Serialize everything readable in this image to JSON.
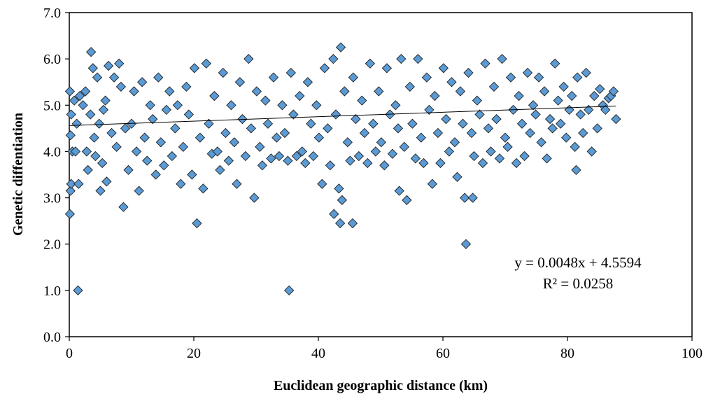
{
  "chart_data": {
    "type": "scatter",
    "title": "",
    "xlabel": "Euclidean geographic distance (km)",
    "ylabel": "Genetic diffentiation",
    "xlim": [
      0,
      100
    ],
    "ylim": [
      0,
      7
    ],
    "x_ticks": [
      "0",
      "20",
      "40",
      "60",
      "80",
      "100"
    ],
    "y_ticks": [
      "0.0",
      "1.0",
      "2.0",
      "3.0",
      "4.0",
      "5.0",
      "6.0",
      "7.0"
    ],
    "grid": false,
    "legend": "none",
    "marker": "diamond",
    "marker_color": "#5B9BD5",
    "marker_edge_color": "#1F1F1F",
    "trendline": {
      "type": "linear",
      "slope": 0.0048,
      "intercept": 4.5594,
      "r_squared": 0.0258,
      "x_range": [
        0,
        87.8
      ],
      "equation_label": "y = 0.0048x + 4.5594",
      "r2_label": "R² = 0.0258"
    },
    "series": [
      {
        "points": [
          [
            0.1,
            2.65
          ],
          [
            0.2,
            3.15
          ],
          [
            0.3,
            3.3
          ],
          [
            0.5,
            4.0
          ],
          [
            0.2,
            4.35
          ],
          [
            0.3,
            4.8
          ],
          [
            0.1,
            5.3
          ],
          [
            0.8,
            5.1
          ],
          [
            1.0,
            4.0
          ],
          [
            1.2,
            4.6
          ],
          [
            1.4,
            1.0
          ],
          [
            1.5,
            3.3
          ],
          [
            1.7,
            5.2
          ],
          [
            2.2,
            5.0
          ],
          [
            2.6,
            5.3
          ],
          [
            2.8,
            4.0
          ],
          [
            3.0,
            3.6
          ],
          [
            3.4,
            4.8
          ],
          [
            3.5,
            6.15
          ],
          [
            3.8,
            5.8
          ],
          [
            4.0,
            4.3
          ],
          [
            4.2,
            3.9
          ],
          [
            4.5,
            5.6
          ],
          [
            4.8,
            4.6
          ],
          [
            5.0,
            3.15
          ],
          [
            5.3,
            3.75
          ],
          [
            5.5,
            4.9
          ],
          [
            5.8,
            5.1
          ],
          [
            6.0,
            3.35
          ],
          [
            6.3,
            5.85
          ],
          [
            6.8,
            4.4
          ],
          [
            7.2,
            5.6
          ],
          [
            7.6,
            4.1
          ],
          [
            8.0,
            5.9
          ],
          [
            8.3,
            5.4
          ],
          [
            8.7,
            2.8
          ],
          [
            9.0,
            4.5
          ],
          [
            9.5,
            3.6
          ],
          [
            10.0,
            4.6
          ],
          [
            10.4,
            5.3
          ],
          [
            10.8,
            4.0
          ],
          [
            11.2,
            3.15
          ],
          [
            11.7,
            5.5
          ],
          [
            12.1,
            4.3
          ],
          [
            12.5,
            3.8
          ],
          [
            13.0,
            5.0
          ],
          [
            13.4,
            4.7
          ],
          [
            13.9,
            3.5
          ],
          [
            14.3,
            5.6
          ],
          [
            14.7,
            4.2
          ],
          [
            15.2,
            3.7
          ],
          [
            15.6,
            4.9
          ],
          [
            16.1,
            5.3
          ],
          [
            16.5,
            3.9
          ],
          [
            17.0,
            4.5
          ],
          [
            17.4,
            5.0
          ],
          [
            17.9,
            3.3
          ],
          [
            18.3,
            4.1
          ],
          [
            18.8,
            5.4
          ],
          [
            19.2,
            4.8
          ],
          [
            19.7,
            3.5
          ],
          [
            20.1,
            5.8
          ],
          [
            20.5,
            2.45
          ],
          [
            21.0,
            4.3
          ],
          [
            21.5,
            3.2
          ],
          [
            22.0,
            5.9
          ],
          [
            22.4,
            4.6
          ],
          [
            22.9,
            3.95
          ],
          [
            23.3,
            5.2
          ],
          [
            23.8,
            4.0
          ],
          [
            24.2,
            3.6
          ],
          [
            24.7,
            5.7
          ],
          [
            25.1,
            4.4
          ],
          [
            25.6,
            3.8
          ],
          [
            26.0,
            5.0
          ],
          [
            26.5,
            4.2
          ],
          [
            26.9,
            3.3
          ],
          [
            27.4,
            5.5
          ],
          [
            27.8,
            4.7
          ],
          [
            28.3,
            3.9
          ],
          [
            28.8,
            6.0
          ],
          [
            29.2,
            4.5
          ],
          [
            29.7,
            3.0
          ],
          [
            30.1,
            5.3
          ],
          [
            30.6,
            4.1
          ],
          [
            31.0,
            3.7
          ],
          [
            31.5,
            5.1
          ],
          [
            31.9,
            4.6
          ],
          [
            32.4,
            3.85
          ],
          [
            32.8,
            5.6
          ],
          [
            33.3,
            4.3
          ],
          [
            33.7,
            3.9
          ],
          [
            34.2,
            5.0
          ],
          [
            34.6,
            4.4
          ],
          [
            35.1,
            3.8
          ],
          [
            35.3,
            1.0
          ],
          [
            35.6,
            5.7
          ],
          [
            36.0,
            4.8
          ],
          [
            36.5,
            3.9
          ],
          [
            37.0,
            5.2
          ],
          [
            37.4,
            4.0
          ],
          [
            37.9,
            3.75
          ],
          [
            38.3,
            5.5
          ],
          [
            38.8,
            4.6
          ],
          [
            39.2,
            3.9
          ],
          [
            39.7,
            5.0
          ],
          [
            40.1,
            4.3
          ],
          [
            40.6,
            3.3
          ],
          [
            41.0,
            5.8
          ],
          [
            41.5,
            4.5
          ],
          [
            41.9,
            3.7
          ],
          [
            42.4,
            6.0
          ],
          [
            42.5,
            2.65
          ],
          [
            42.8,
            4.8
          ],
          [
            43.3,
            3.2
          ],
          [
            43.5,
            2.45
          ],
          [
            43.6,
            6.25
          ],
          [
            43.8,
            2.95
          ],
          [
            44.2,
            5.3
          ],
          [
            44.7,
            4.2
          ],
          [
            45.1,
            3.8
          ],
          [
            45.5,
            2.45
          ],
          [
            45.6,
            5.6
          ],
          [
            46.0,
            4.7
          ],
          [
            46.5,
            3.9
          ],
          [
            47.0,
            5.1
          ],
          [
            47.4,
            4.4
          ],
          [
            47.9,
            3.75
          ],
          [
            48.3,
            5.9
          ],
          [
            48.8,
            4.6
          ],
          [
            49.2,
            4.0
          ],
          [
            49.7,
            5.3
          ],
          [
            50.1,
            4.2
          ],
          [
            50.6,
            3.7
          ],
          [
            51.0,
            5.8
          ],
          [
            51.5,
            4.8
          ],
          [
            51.9,
            3.95
          ],
          [
            52.4,
            5.0
          ],
          [
            52.8,
            4.5
          ],
          [
            53.0,
            3.15
          ],
          [
            53.3,
            6.0
          ],
          [
            53.8,
            4.1
          ],
          [
            54.2,
            2.95
          ],
          [
            54.7,
            5.4
          ],
          [
            55.1,
            4.6
          ],
          [
            55.6,
            3.85
          ],
          [
            56.0,
            6.0
          ],
          [
            56.5,
            4.3
          ],
          [
            56.9,
            3.75
          ],
          [
            57.4,
            5.6
          ],
          [
            57.8,
            4.9
          ],
          [
            58.3,
            3.3
          ],
          [
            58.7,
            5.2
          ],
          [
            59.2,
            4.4
          ],
          [
            59.6,
            3.75
          ],
          [
            60.1,
            5.8
          ],
          [
            60.5,
            4.7
          ],
          [
            61.0,
            4.0
          ],
          [
            61.4,
            5.5
          ],
          [
            61.9,
            4.2
          ],
          [
            62.3,
            3.45
          ],
          [
            62.8,
            5.3
          ],
          [
            63.2,
            4.6
          ],
          [
            63.5,
            3.0
          ],
          [
            63.7,
            2.0
          ],
          [
            64.1,
            5.7
          ],
          [
            64.6,
            4.4
          ],
          [
            64.8,
            3.0
          ],
          [
            65.0,
            3.9
          ],
          [
            65.5,
            5.1
          ],
          [
            65.9,
            4.8
          ],
          [
            66.4,
            3.75
          ],
          [
            66.8,
            5.9
          ],
          [
            67.3,
            4.5
          ],
          [
            67.7,
            4.0
          ],
          [
            68.2,
            5.4
          ],
          [
            68.6,
            4.7
          ],
          [
            69.1,
            3.85
          ],
          [
            69.5,
            6.0
          ],
          [
            70.0,
            4.3
          ],
          [
            70.4,
            4.1
          ],
          [
            70.9,
            5.6
          ],
          [
            71.3,
            4.9
          ],
          [
            71.8,
            3.75
          ],
          [
            72.2,
            5.2
          ],
          [
            72.7,
            4.6
          ],
          [
            73.1,
            3.9
          ],
          [
            73.6,
            5.7
          ],
          [
            74.0,
            4.4
          ],
          [
            74.5,
            5.0
          ],
          [
            74.9,
            4.8
          ],
          [
            75.4,
            5.6
          ],
          [
            75.8,
            4.2
          ],
          [
            76.3,
            5.3
          ],
          [
            76.7,
            3.85
          ],
          [
            77.2,
            4.7
          ],
          [
            77.6,
            4.5
          ],
          [
            78.0,
            5.9
          ],
          [
            78.5,
            5.1
          ],
          [
            78.9,
            4.6
          ],
          [
            79.4,
            5.4
          ],
          [
            79.8,
            4.3
          ],
          [
            80.3,
            4.9
          ],
          [
            80.7,
            5.2
          ],
          [
            81.2,
            4.1
          ],
          [
            81.4,
            3.6
          ],
          [
            81.6,
            5.6
          ],
          [
            82.1,
            4.8
          ],
          [
            82.5,
            4.4
          ],
          [
            83.0,
            5.7
          ],
          [
            83.4,
            4.9
          ],
          [
            83.9,
            4.0
          ],
          [
            84.3,
            5.2
          ],
          [
            84.8,
            4.5
          ],
          [
            85.2,
            5.35
          ],
          [
            85.7,
            5.0
          ],
          [
            86.1,
            4.9
          ],
          [
            86.6,
            5.15
          ],
          [
            87.0,
            5.2
          ],
          [
            87.4,
            5.3
          ],
          [
            87.8,
            4.7
          ]
        ]
      }
    ]
  }
}
